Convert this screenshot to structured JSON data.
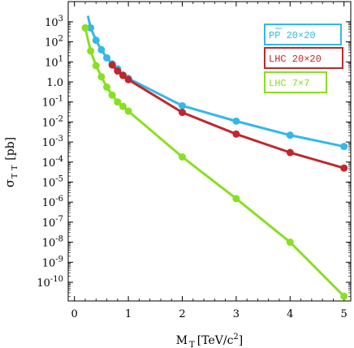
{
  "chart_data": {
    "type": "line",
    "xlabel_main": "M",
    "xlabel_sub": "T",
    "xlabel_unit": "[TeV/c",
    "xlabel_unit_sup": "2",
    "xlabel_unit_close": "]",
    "ylabel_main": "σ",
    "ylabel_sub": "T",
    "ylabel_sub2": "T",
    "ylabel_bar": "‾",
    "ylabel_unit": "[pb]",
    "xlim": [
      -0.1,
      5.1
    ],
    "ylim_log10": [
      -11,
      3
    ],
    "y_scale": "log",
    "grid": false,
    "legend_placement": "top-right",
    "x_ticks": [
      0,
      1,
      2,
      3,
      4,
      5
    ],
    "x_tick_labels": [
      "0",
      "1",
      "2",
      "3",
      "4",
      "5"
    ],
    "y_ticks_log10": [
      3,
      2,
      1,
      0,
      -1,
      -2,
      -3,
      -4,
      -5,
      -6,
      -7,
      -8,
      -9,
      -10
    ],
    "y_tick_labels": [
      {
        "base": "10",
        "exp": "3"
      },
      {
        "base": "10",
        "exp": "2"
      },
      {
        "base": "10",
        "exp": "1"
      },
      {
        "base": "1.0",
        "exp": ""
      },
      {
        "base": "10",
        "exp": "-1"
      },
      {
        "base": "10",
        "exp": "-2"
      },
      {
        "base": "10",
        "exp": "-3"
      },
      {
        "base": "10",
        "exp": "-4"
      },
      {
        "base": "10",
        "exp": "-5"
      },
      {
        "base": "10",
        "exp": "-6"
      },
      {
        "base": "10",
        "exp": "-7"
      },
      {
        "base": "10",
        "exp": "-8"
      },
      {
        "base": "10",
        "exp": "-9"
      },
      {
        "base": "10",
        "exp": "-10"
      }
    ],
    "series": [
      {
        "name": "PP  20×20",
        "name_parts": {
          "p1": "P",
          "p2": "P",
          "rest": "  20×20"
        },
        "color": "#33b8e8",
        "line_from_x": 0.25,
        "line_from_y": 2000,
        "x": [
          0.3,
          0.4,
          0.5,
          0.6,
          0.7,
          0.8,
          0.9,
          1.0,
          2.0,
          3.0,
          4.0,
          5.0
        ],
        "y": [
          500,
          120,
          40,
          16,
          8,
          4.5,
          2.2,
          1.5,
          0.065,
          0.011,
          0.0022,
          0.0006
        ]
      },
      {
        "name": "LHC 20×20",
        "color": "#c0272d",
        "x": [
          0.7,
          0.8,
          0.9,
          1.0,
          2.0,
          3.0,
          4.0,
          5.0
        ],
        "y": [
          7,
          3.5,
          2.1,
          1.3,
          0.03,
          0.0025,
          0.0003,
          5e-05
        ]
      },
      {
        "name": "LHC 7×7",
        "color": "#88e020",
        "x": [
          0.2,
          0.3,
          0.4,
          0.5,
          0.6,
          0.7,
          0.8,
          0.9,
          1.0,
          2.0,
          3.0,
          4.0,
          5.0
        ],
        "y": [
          500,
          35,
          6.5,
          1.8,
          0.55,
          0.22,
          0.1,
          0.06,
          0.035,
          0.00018,
          1.5e-06,
          1e-08,
          2e-11
        ]
      }
    ]
  }
}
